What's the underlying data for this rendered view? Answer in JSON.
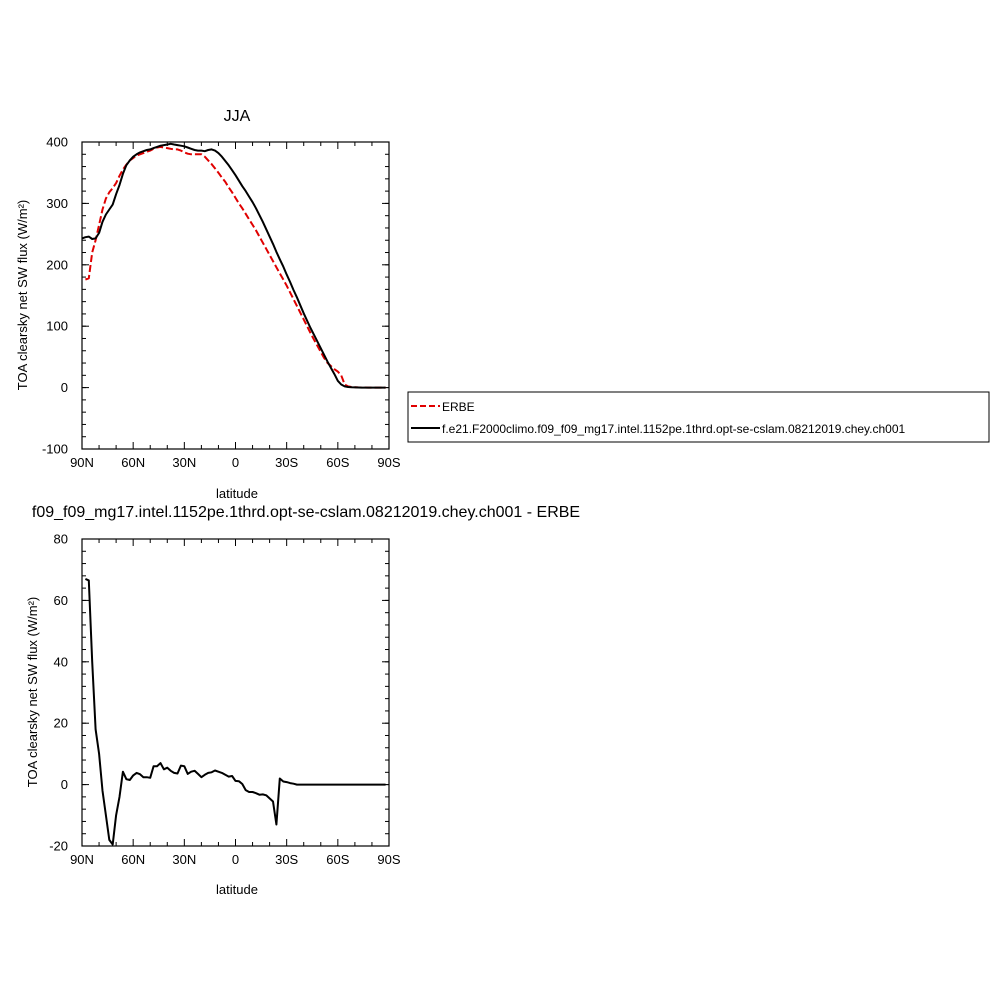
{
  "chart_data": [
    {
      "type": "line",
      "title": "JJA",
      "xlabel": "latitude",
      "ylabel": "TOA clearsky net SW flux (W/m²)",
      "xlim": [
        90,
        -90
      ],
      "ylim": [
        -100,
        400
      ],
      "x_ticks": [
        {
          "value": 90,
          "label": "90N"
        },
        {
          "value": 60,
          "label": "60N"
        },
        {
          "value": 30,
          "label": "30N"
        },
        {
          "value": 0,
          "label": "0"
        },
        {
          "value": -30,
          "label": "30S"
        },
        {
          "value": -60,
          "label": "60S"
        },
        {
          "value": -90,
          "label": "90S"
        }
      ],
      "y_ticks": [
        {
          "value": 400,
          "label": "400"
        },
        {
          "value": 300,
          "label": "300"
        },
        {
          "value": 200,
          "label": "200"
        },
        {
          "value": 100,
          "label": "100"
        },
        {
          "value": 0,
          "label": "0"
        },
        {
          "value": -100,
          "label": "-100"
        }
      ],
      "legend_position": "right",
      "series": [
        {
          "name": "ERBE",
          "color": "#e00000",
          "style": "dashed",
          "x": [
            88,
            86,
            84,
            82,
            80,
            78,
            76,
            74,
            72,
            70,
            68,
            66,
            64,
            62,
            60,
            58,
            56,
            54,
            52,
            50,
            48,
            46,
            44,
            42,
            40,
            38,
            36,
            34,
            32,
            30,
            28,
            26,
            24,
            22,
            20,
            18,
            16,
            14,
            12,
            10,
            8,
            6,
            4,
            2,
            0,
            -2,
            -4,
            -6,
            -8,
            -10,
            -12,
            -14,
            -16,
            -18,
            -20,
            -22,
            -24,
            -26,
            -28,
            -30,
            -32,
            -34,
            -36,
            -38,
            -40,
            -42,
            -44,
            -46,
            -48,
            -50,
            -52,
            -54,
            -56,
            -58,
            -60,
            -62,
            -64,
            -66,
            -68,
            -70,
            -72,
            -74,
            -76,
            -78,
            -80,
            -82,
            -84,
            -86,
            -88
          ],
          "y": [
            176,
            178,
            220,
            240,
            265,
            290,
            308,
            318,
            325,
            333,
            345,
            355,
            363,
            370,
            374,
            378,
            380,
            382,
            384,
            386,
            389,
            391,
            392,
            391,
            390,
            389,
            388,
            388,
            386,
            383,
            381,
            380,
            380,
            380,
            380,
            376,
            370,
            364,
            357,
            350,
            342,
            335,
            326,
            318,
            309,
            300,
            292,
            283,
            274,
            265,
            256,
            246,
            236,
            226,
            216,
            206,
            196,
            186,
            176,
            166,
            155,
            144,
            133,
            122,
            111,
            100,
            89,
            78,
            68,
            58,
            48,
            40,
            35,
            30,
            26,
            20,
            5,
            2,
            1,
            0.6,
            0.3,
            0.2,
            0.1,
            0,
            0,
            0,
            0,
            0,
            0
          ]
        },
        {
          "name": "f.e21.F2000climo.f09_f09_mg17.intel.1152pe.1thrd.opt-se-cslam.08212019.chey.ch001",
          "color": "#000000",
          "style": "solid",
          "x": [
            90,
            88,
            86,
            84,
            82,
            80,
            78,
            76,
            74,
            72,
            70,
            68,
            66,
            64,
            62,
            60,
            58,
            56,
            54,
            52,
            50,
            48,
            46,
            44,
            42,
            40,
            38,
            36,
            34,
            32,
            30,
            28,
            26,
            24,
            22,
            20,
            18,
            16,
            14,
            12,
            10,
            8,
            6,
            4,
            2,
            0,
            -2,
            -4,
            -6,
            -8,
            -10,
            -12,
            -14,
            -16,
            -18,
            -20,
            -22,
            -24,
            -26,
            -28,
            -30,
            -32,
            -34,
            -36,
            -38,
            -40,
            -42,
            -44,
            -46,
            -48,
            -50,
            -52,
            -54,
            -56,
            -58,
            -60,
            -62,
            -64,
            -66,
            -68,
            -70,
            -72,
            -74,
            -76,
            -78,
            -80,
            -82,
            -84,
            -86,
            -88
          ],
          "y": [
            243,
            245,
            246,
            242,
            243,
            252,
            270,
            282,
            290,
            298,
            315,
            330,
            348,
            362,
            370,
            376,
            380,
            383,
            385,
            387,
            388,
            390,
            392,
            394,
            395,
            396,
            397,
            396,
            395,
            394,
            393,
            391,
            389,
            387,
            386,
            386,
            385,
            387,
            388,
            386,
            382,
            376,
            369,
            362,
            354,
            346,
            337,
            328,
            320,
            311,
            302,
            292,
            281,
            270,
            258,
            246,
            234,
            221,
            209,
            197,
            184,
            172,
            159,
            147,
            134,
            121,
            109,
            97,
            86,
            75,
            64,
            53,
            42,
            32,
            22,
            11,
            5,
            2,
            1,
            0.5,
            0.3,
            0.1,
            0,
            0,
            0,
            0,
            0,
            0,
            0,
            0
          ]
        }
      ]
    },
    {
      "type": "line",
      "title": "f09_f09_mg17.intel.1152pe.1thrd.opt-se-cslam.08212019.chey.ch001 - ERBE",
      "xlabel": "latitude",
      "ylabel": "TOA clearsky net SW flux (W/m²)",
      "xlim": [
        90,
        -90
      ],
      "ylim": [
        -20,
        80
      ],
      "x_ticks": [
        {
          "value": 90,
          "label": "90N"
        },
        {
          "value": 60,
          "label": "60N"
        },
        {
          "value": 30,
          "label": "30N"
        },
        {
          "value": 0,
          "label": "0"
        },
        {
          "value": -30,
          "label": "30S"
        },
        {
          "value": -60,
          "label": "60S"
        },
        {
          "value": -90,
          "label": "90S"
        }
      ],
      "y_ticks": [
        {
          "value": 80,
          "label": "80"
        },
        {
          "value": 60,
          "label": "60"
        },
        {
          "value": 40,
          "label": "40"
        },
        {
          "value": 20,
          "label": "20"
        },
        {
          "value": 0,
          "label": "0"
        },
        {
          "value": -20,
          "label": "-20"
        }
      ],
      "series": [
        {
          "color": "#000000",
          "style": "solid",
          "x": [
            88,
            86,
            84,
            82,
            80,
            78,
            76,
            74,
            72,
            70,
            68,
            66,
            64,
            62,
            60,
            58,
            56,
            54,
            52,
            50,
            48,
            46,
            44,
            42,
            40,
            38,
            36,
            34,
            32,
            30,
            28,
            26,
            24,
            22,
            20,
            18,
            16,
            14,
            12,
            10,
            8,
            6,
            4,
            2,
            0,
            -2,
            -4,
            -6,
            -8,
            -10,
            -12,
            -14,
            -16,
            -18,
            -20,
            -22,
            -24,
            -26,
            -28,
            -30,
            -32,
            -34,
            -36,
            -38,
            -40,
            -42,
            -44,
            -46,
            -48,
            -50,
            -52,
            -54,
            -56,
            -58,
            -60,
            -62,
            -64,
            -66,
            -68,
            -70,
            -72,
            -74,
            -76,
            -78,
            -80,
            -82,
            -84,
            -86,
            -88
          ],
          "y": [
            67,
            66.5,
            40,
            18,
            10,
            -2,
            -10,
            -18,
            -19.5,
            -10,
            -4,
            4.2,
            1.8,
            1.5,
            3,
            3.8,
            3.4,
            2.4,
            2.4,
            2.2,
            6,
            6,
            7,
            5,
            5.5,
            4.5,
            3.8,
            3.6,
            6.2,
            6,
            3.5,
            4.2,
            4.5,
            3.5,
            2.4,
            3.2,
            3.8,
            4,
            4.6,
            4.2,
            3.8,
            3.2,
            2.6,
            2.8,
            1.2,
            1.1,
            0.2,
            -1.8,
            -2.4,
            -2.4,
            -2.8,
            -3.3,
            -3.2,
            -3.5,
            -4.5,
            -5.5,
            -13,
            2,
            1,
            0.8,
            0.5,
            0.3,
            0,
            0,
            0,
            0,
            0,
            0,
            0,
            0,
            0,
            0,
            0,
            0,
            0,
            0,
            0,
            0,
            0,
            0,
            0,
            0,
            0,
            0,
            0,
            0,
            0,
            0,
            0
          ]
        }
      ]
    }
  ]
}
